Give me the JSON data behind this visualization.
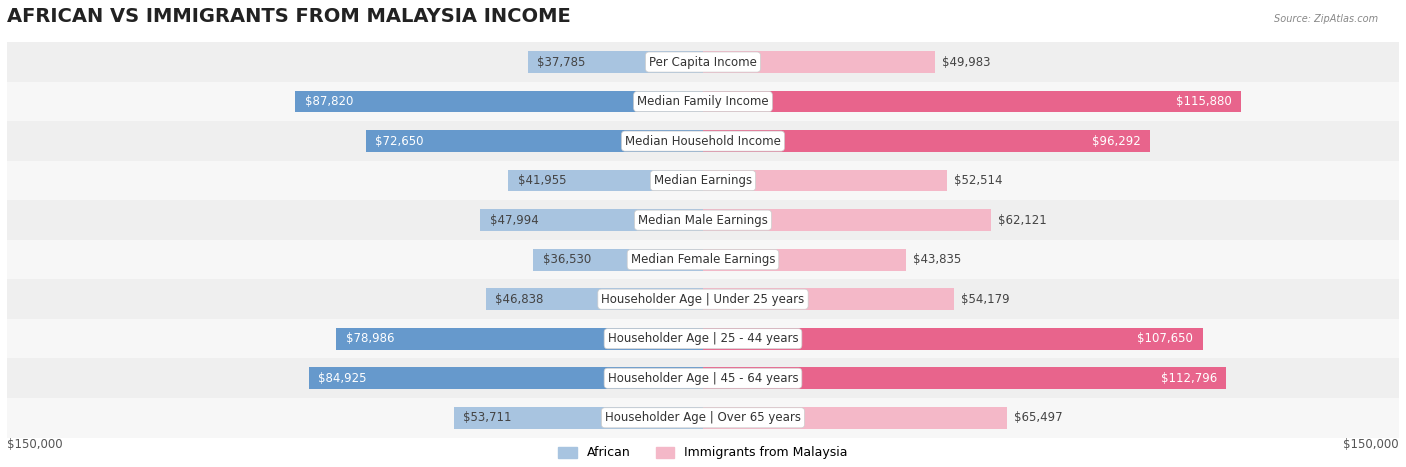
{
  "title": "AFRICAN VS IMMIGRANTS FROM MALAYSIA INCOME",
  "source": "Source: ZipAtlas.com",
  "categories": [
    "Per Capita Income",
    "Median Family Income",
    "Median Household Income",
    "Median Earnings",
    "Median Male Earnings",
    "Median Female Earnings",
    "Householder Age | Under 25 years",
    "Householder Age | 25 - 44 years",
    "Householder Age | 45 - 64 years",
    "Householder Age | Over 65 years"
  ],
  "african_values": [
    37785,
    87820,
    72650,
    41955,
    47994,
    36530,
    46838,
    78986,
    84925,
    53711
  ],
  "malaysia_values": [
    49983,
    115880,
    96292,
    52514,
    62121,
    43835,
    54179,
    107650,
    112796,
    65497
  ],
  "african_labels": [
    "$37,785",
    "$87,820",
    "$72,650",
    "$41,955",
    "$47,994",
    "$36,530",
    "$46,838",
    "$78,986",
    "$84,925",
    "$53,711"
  ],
  "malaysia_labels": [
    "$49,983",
    "$115,880",
    "$96,292",
    "$52,514",
    "$62,121",
    "$43,835",
    "$54,179",
    "$107,650",
    "$112,796",
    "$65,497"
  ],
  "african_color_light": "#a8c4e0",
  "african_color_dark": "#6699cc",
  "malaysia_color_light": "#f4b8c8",
  "malaysia_color_dark": "#e8648c",
  "max_value": 150000,
  "x_label_left": "$150,000",
  "x_label_right": "$150,000",
  "legend_african": "African",
  "legend_malaysia": "Immigrants from Malaysia",
  "row_bg_color": "#f0f0f0",
  "title_fontsize": 14,
  "label_fontsize": 8.5,
  "category_fontsize": 8.5
}
